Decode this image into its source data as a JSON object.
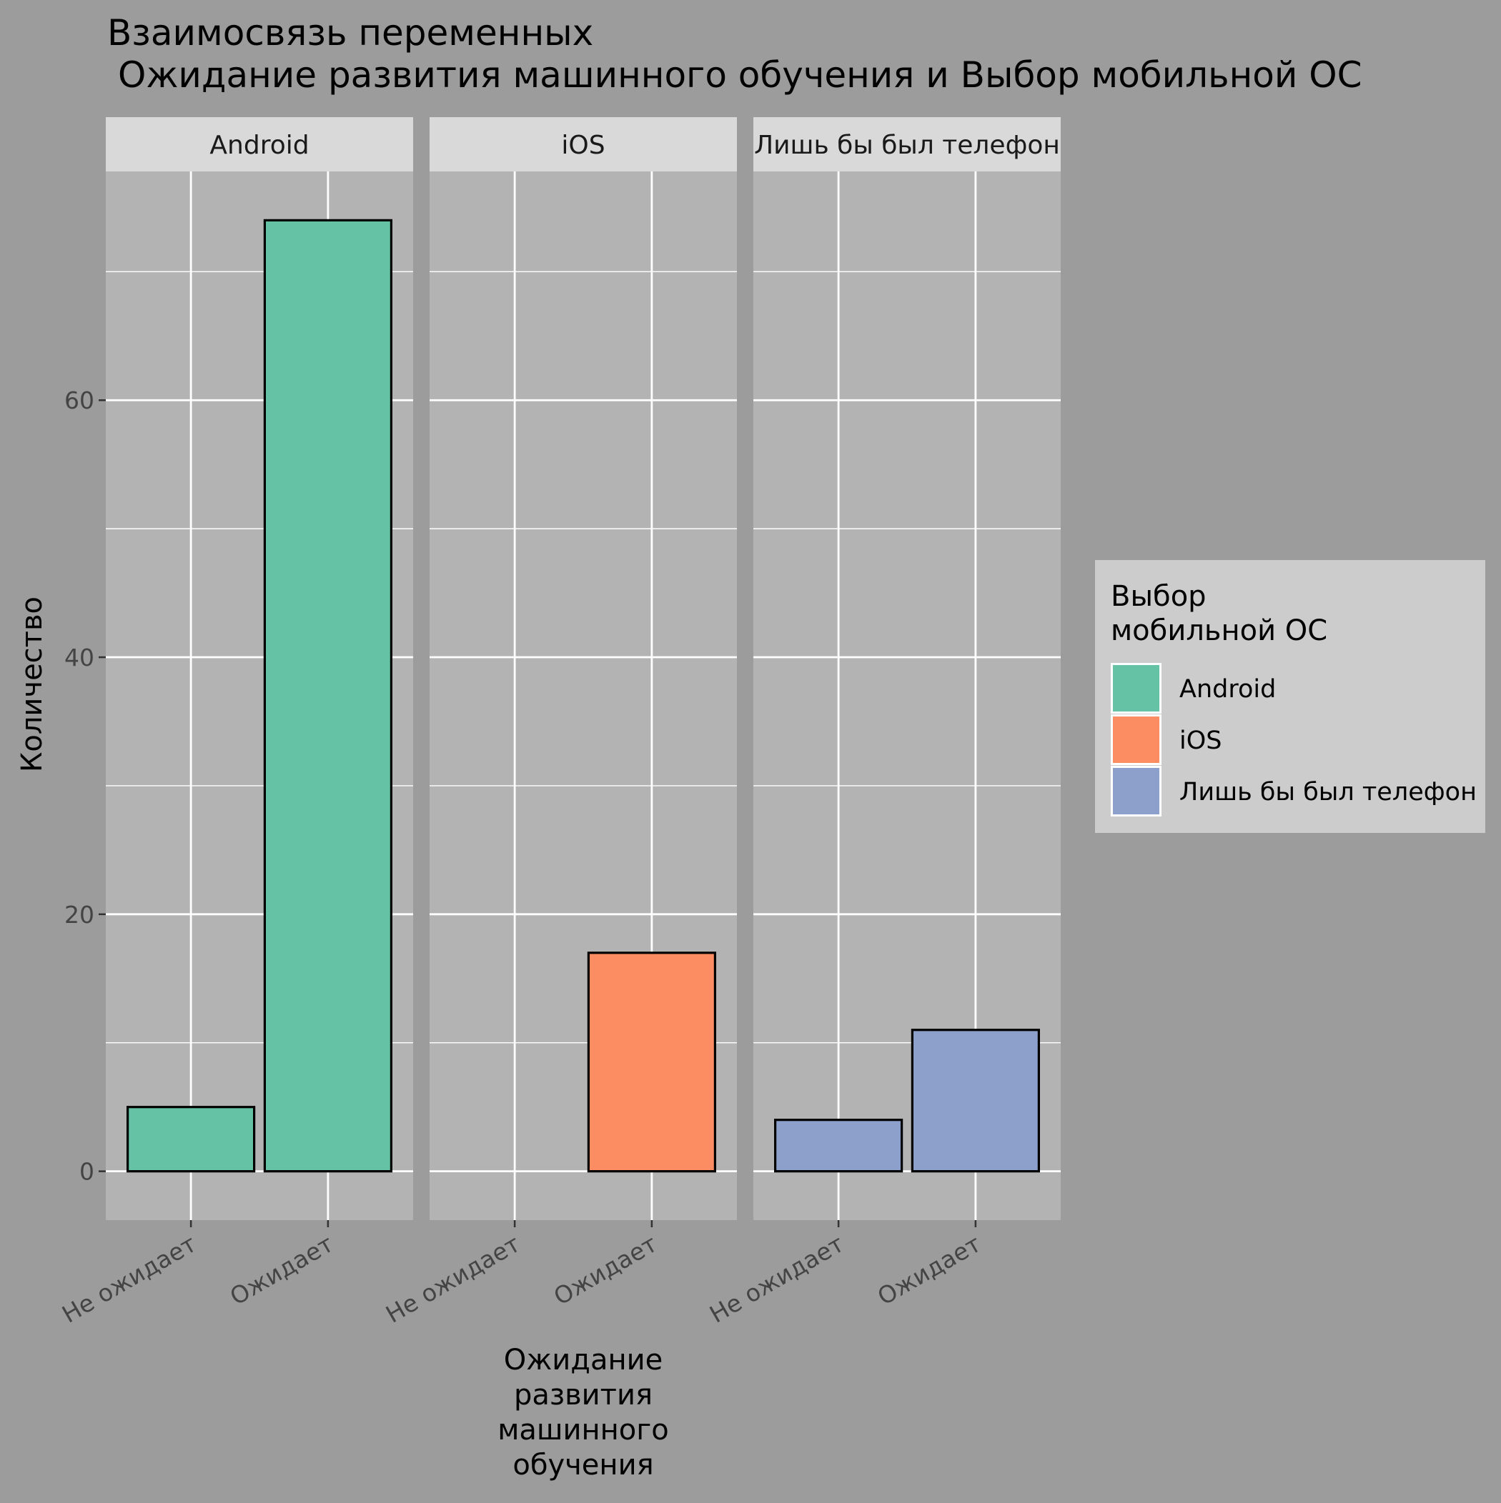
{
  "chart_data": {
    "type": "bar",
    "title_line1": "Взаимосвязь переменных",
    "title_line2": "Ожидание развития машинного обучения и Выбор мобильной ОС",
    "xlabel_lines": [
      "Ожидание",
      "развития",
      "машинного",
      "обучения"
    ],
    "ylabel": "Количество",
    "ylim": [
      -3.8,
      77.8
    ],
    "yticks": [
      0,
      20,
      40,
      60
    ],
    "categories": [
      "Не ожидает",
      "Ожидает"
    ],
    "facets": [
      {
        "name": "Android",
        "values": [
          5,
          74
        ]
      },
      {
        "name": "iOS",
        "values": [
          0,
          17
        ]
      },
      {
        "name": "Лишь бы был телефон",
        "values": [
          4,
          11
        ]
      }
    ],
    "series_colors": {
      "Android": "#66c2a5",
      "iOS": "#fc8d62",
      "Лишь бы был телефон": "#8da0cb"
    },
    "legend": {
      "title_lines": [
        "Выбор",
        "мобильной ОС"
      ],
      "entries": [
        "Android",
        "iOS",
        "Лишь бы был телефон"
      ],
      "position": "right"
    },
    "grid": true
  }
}
